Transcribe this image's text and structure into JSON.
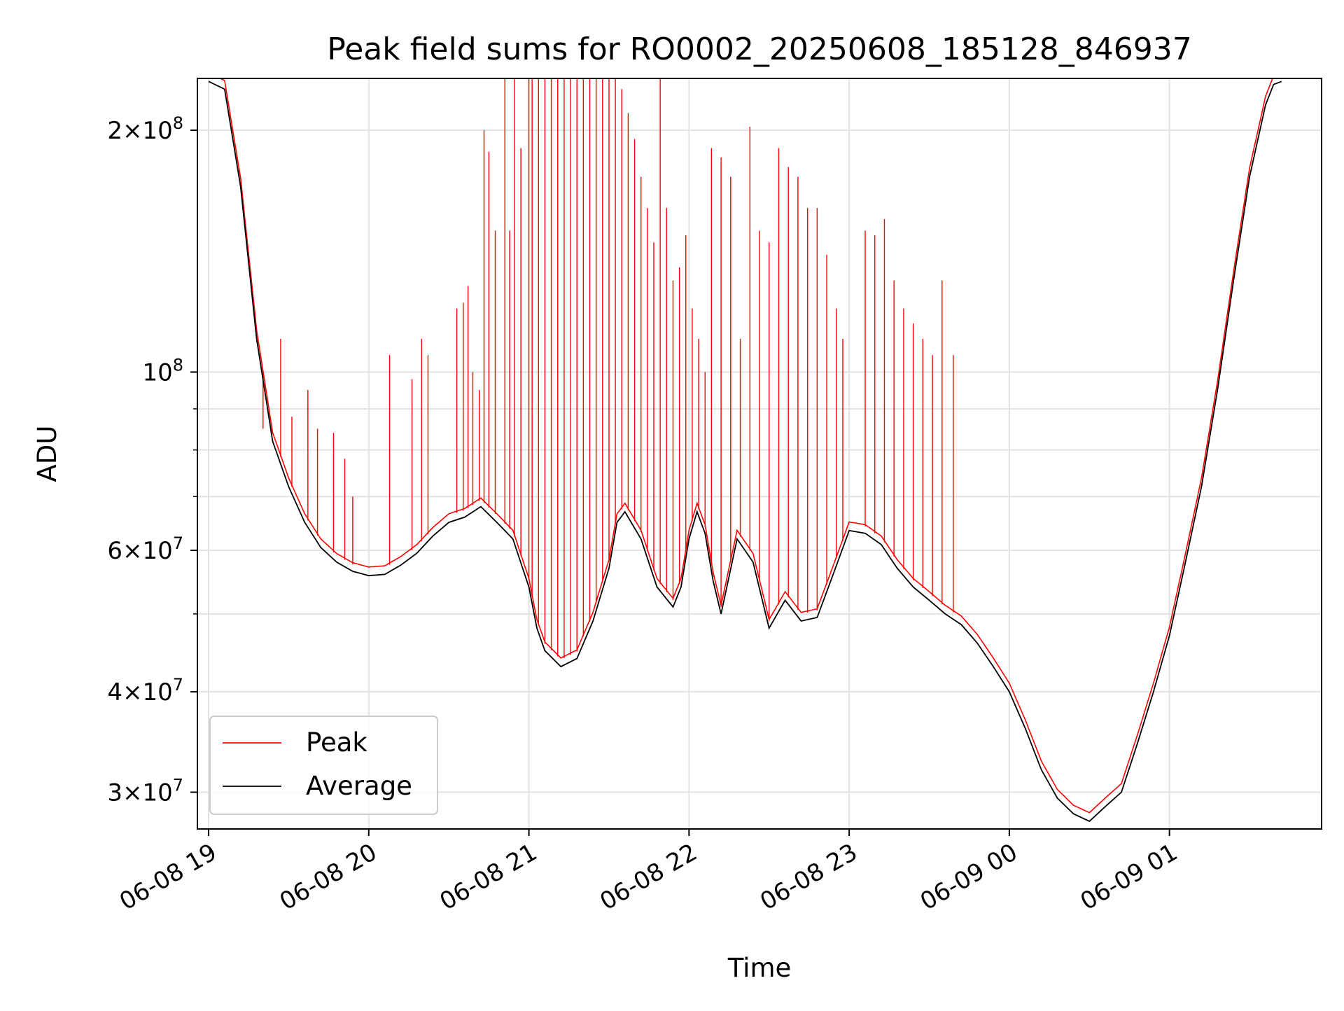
{
  "chart_data": {
    "type": "line",
    "title": "Peak field sums for RO0002_20250608_185128_846937",
    "xlabel": "Time",
    "ylabel": "ADU",
    "yscale": "log",
    "ylim": [
      27000000,
      232000000
    ],
    "xlim_hours": [
      -0.07,
      6.95
    ],
    "grid": true,
    "legend_position": "lower-left",
    "x_ticks": [
      {
        "hour": 0,
        "label": "06-08 19"
      },
      {
        "hour": 1,
        "label": "06-08 20"
      },
      {
        "hour": 2,
        "label": "06-08 21"
      },
      {
        "hour": 3,
        "label": "06-08 22"
      },
      {
        "hour": 4,
        "label": "06-08 23"
      },
      {
        "hour": 5,
        "label": "06-09 00"
      },
      {
        "hour": 6,
        "label": "06-09 01"
      }
    ],
    "y_ticks": [
      {
        "value": 30000000,
        "mantissa": "3",
        "exponent": "7",
        "label": "3×10^7"
      },
      {
        "value": 40000000,
        "mantissa": "4",
        "exponent": "7",
        "label": "4×10^7"
      },
      {
        "value": 60000000,
        "mantissa": "6",
        "exponent": "7",
        "label": "6×10^7"
      },
      {
        "value": 100000000,
        "mantissa": "",
        "exponent": "8",
        "label": "10^8"
      },
      {
        "value": 200000000,
        "mantissa": "2",
        "exponent": "8",
        "label": "2×10^8"
      }
    ],
    "y_minor_ticks": [
      50000000,
      70000000,
      80000000,
      90000000
    ],
    "series": [
      {
        "name": "Average",
        "color": "#000000",
        "x_hours": [
          0.0,
          0.1,
          0.2,
          0.3,
          0.4,
          0.5,
          0.6,
          0.7,
          0.8,
          0.9,
          1.0,
          1.1,
          1.2,
          1.3,
          1.4,
          1.5,
          1.6,
          1.7,
          1.8,
          1.9,
          2.0,
          2.05,
          2.1,
          2.2,
          2.3,
          2.4,
          2.5,
          2.55,
          2.6,
          2.7,
          2.8,
          2.9,
          2.95,
          3.0,
          3.05,
          3.1,
          3.15,
          3.2,
          3.3,
          3.4,
          3.5,
          3.6,
          3.7,
          3.8,
          3.9,
          4.0,
          4.1,
          4.2,
          4.3,
          4.4,
          4.5,
          4.6,
          4.7,
          4.8,
          4.9,
          5.0,
          5.1,
          5.2,
          5.3,
          5.4,
          5.5,
          5.6,
          5.7,
          5.8,
          5.9,
          6.0,
          6.1,
          6.2,
          6.3,
          6.4,
          6.5,
          6.6,
          6.65,
          6.7
        ],
        "values": [
          230000000,
          225000000,
          170000000,
          110000000,
          82000000,
          72000000,
          65000000,
          60500000,
          58000000,
          56500000,
          55800000,
          56000000,
          57500000,
          59500000,
          62500000,
          65000000,
          66000000,
          68000000,
          65000000,
          62000000,
          54000000,
          48000000,
          45000000,
          43000000,
          44000000,
          49000000,
          57000000,
          65000000,
          67000000,
          62000000,
          54000000,
          51000000,
          54000000,
          62000000,
          67000000,
          63000000,
          55000000,
          50000000,
          62000000,
          58000000,
          48000000,
          52000000,
          49000000,
          49500000,
          56000000,
          63500000,
          63000000,
          61000000,
          57000000,
          54000000,
          52000000,
          50000000,
          48500000,
          46000000,
          43000000,
          40000000,
          36000000,
          32000000,
          29500000,
          28200000,
          27600000,
          28800000,
          30000000,
          34500000,
          40000000,
          47000000,
          58000000,
          72000000,
          95000000,
          130000000,
          175000000,
          215000000,
          228000000,
          230000000
        ]
      },
      {
        "name": "Peak",
        "color": "#ff0000",
        "spike_times": [
          0.34,
          0.45,
          0.52,
          0.62,
          0.68,
          0.78,
          0.85,
          0.9,
          1.13,
          1.27,
          1.33,
          1.37,
          1.55,
          1.59,
          1.62,
          1.65,
          1.69,
          1.72,
          1.75,
          1.79,
          1.85,
          1.88,
          1.91,
          1.95,
          2.0,
          2.02,
          2.06,
          2.1,
          2.14,
          2.18,
          2.22,
          2.26,
          2.3,
          2.34,
          2.38,
          2.42,
          2.46,
          2.5,
          2.54,
          2.58,
          2.62,
          2.66,
          2.7,
          2.74,
          2.78,
          2.82,
          2.86,
          2.9,
          2.94,
          2.98,
          3.02,
          3.06,
          3.1,
          3.14,
          3.2,
          3.26,
          3.32,
          3.38,
          3.44,
          3.5,
          3.56,
          3.62,
          3.68,
          3.74,
          3.8,
          3.86,
          3.92,
          3.96,
          4.1,
          4.16,
          4.22,
          4.28,
          4.34,
          4.4,
          4.46,
          4.52,
          4.58,
          4.65
        ],
        "spike_values": [
          85000000,
          110000000,
          88000000,
          95000000,
          85000000,
          84000000,
          78000000,
          70000000,
          105000000,
          98000000,
          110000000,
          105000000,
          120000000,
          122000000,
          128000000,
          100000000,
          95000000,
          200000000,
          188000000,
          150000000,
          232000000,
          150000000,
          232000000,
          190000000,
          232000000,
          232000000,
          232000000,
          232000000,
          232000000,
          232000000,
          232000000,
          232000000,
          232000000,
          232000000,
          232000000,
          232000000,
          232000000,
          232000000,
          232000000,
          225000000,
          210000000,
          195000000,
          175000000,
          160000000,
          145000000,
          232000000,
          160000000,
          130000000,
          135000000,
          148000000,
          120000000,
          110000000,
          100000000,
          190000000,
          185000000,
          175000000,
          110000000,
          202000000,
          150000000,
          145000000,
          190000000,
          180000000,
          175000000,
          160000000,
          160000000,
          140000000,
          120000000,
          110000000,
          150000000,
          148000000,
          155000000,
          130000000,
          120000000,
          115000000,
          110000000,
          105000000,
          130000000,
          105000000
        ]
      }
    ]
  }
}
